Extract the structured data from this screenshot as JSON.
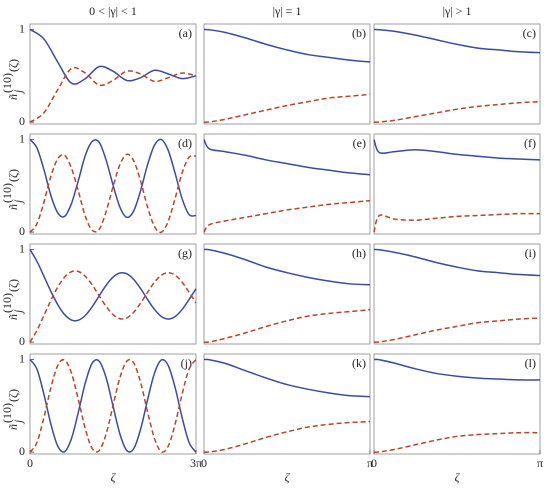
{
  "column_titles": [
    "0 < |γ| < 1",
    "|γ| = 1",
    "|γ| > 1"
  ],
  "chart_data": [
    {
      "type": "line",
      "label": "(a)",
      "ylabel": {
        "base": "ñ",
        "sub": "j",
        "sup": "(10)",
        "arg": "(ζ)"
      },
      "xlim": [
        0,
        9.425
      ],
      "ylim": [
        -0.02,
        1.06
      ],
      "yticks": [
        0,
        1
      ],
      "x": [
        0,
        0.785,
        1.571,
        2.356,
        3.142,
        3.927,
        4.712,
        5.498,
        6.283,
        7.069,
        7.854,
        8.639,
        9.425
      ],
      "series": [
        {
          "color": "#3b4ba0",
          "style": "solid",
          "values": [
            1,
            0.9,
            0.65,
            0.42,
            0.47,
            0.6,
            0.55,
            0.45,
            0.48,
            0.56,
            0.52,
            0.47,
            0.5
          ]
        },
        {
          "color": "#b5462a",
          "style": "dashed",
          "values": [
            0,
            0.1,
            0.35,
            0.58,
            0.53,
            0.4,
            0.45,
            0.55,
            0.52,
            0.44,
            0.48,
            0.53,
            0.5
          ]
        }
      ]
    },
    {
      "type": "line",
      "label": "(b)",
      "xlim": [
        0,
        3.142
      ],
      "ylim": [
        -0.02,
        1.06
      ],
      "x": [
        0,
        0.1,
        0.393,
        0.785,
        1.178,
        1.571,
        1.963,
        2.356,
        2.749,
        3.142
      ],
      "series": [
        {
          "color": "#3b4ba0",
          "style": "solid",
          "values": [
            1,
            0.998,
            0.97,
            0.91,
            0.84,
            0.78,
            0.73,
            0.7,
            0.67,
            0.65
          ]
        },
        {
          "color": "#b5462a",
          "style": "dashed",
          "values": [
            0,
            0.002,
            0.03,
            0.08,
            0.13,
            0.18,
            0.22,
            0.26,
            0.28,
            0.3
          ]
        }
      ]
    },
    {
      "type": "line",
      "label": "(c)",
      "xlim": [
        0,
        3.142
      ],
      "ylim": [
        -0.02,
        1.06
      ],
      "x": [
        0,
        0.1,
        0.393,
        0.785,
        1.178,
        1.571,
        1.963,
        2.356,
        2.749,
        3.142
      ],
      "series": [
        {
          "color": "#3b4ba0",
          "style": "solid",
          "values": [
            1,
            0.998,
            0.98,
            0.94,
            0.89,
            0.84,
            0.8,
            0.78,
            0.76,
            0.75
          ]
        },
        {
          "color": "#b5462a",
          "style": "dashed",
          "values": [
            0,
            0.002,
            0.02,
            0.06,
            0.1,
            0.14,
            0.17,
            0.19,
            0.21,
            0.22
          ]
        }
      ]
    },
    {
      "type": "line",
      "label": "(d)",
      "ylabel": {
        "base": "ñ",
        "sub": "j",
        "sup": "(10)",
        "arg": "(ζ)"
      },
      "xlim": [
        0,
        9.425
      ],
      "ylim": [
        -0.02,
        1.06
      ],
      "yticks": [
        0,
        1
      ],
      "x": [
        0,
        0.393,
        0.785,
        1.178,
        1.571,
        1.963,
        2.356,
        2.749,
        3.142,
        3.534,
        3.927,
        4.32,
        4.712,
        5.105,
        5.498,
        5.89,
        6.283,
        6.676,
        7.069,
        7.461,
        7.854,
        8.247,
        8.639,
        9.032,
        9.425
      ],
      "series": [
        {
          "color": "#3b4ba0",
          "style": "solid",
          "values": [
            1,
            0.91,
            0.68,
            0.4,
            0.21,
            0.17,
            0.31,
            0.56,
            0.83,
            0.98,
            0.97,
            0.78,
            0.51,
            0.27,
            0.16,
            0.23,
            0.45,
            0.73,
            0.94,
            1.0,
            0.88,
            0.63,
            0.36,
            0.19,
            0.18
          ]
        },
        {
          "color": "#b5462a",
          "style": "dashed",
          "values": [
            0,
            0.09,
            0.32,
            0.6,
            0.79,
            0.83,
            0.69,
            0.44,
            0.17,
            0.02,
            0.03,
            0.22,
            0.49,
            0.73,
            0.84,
            0.77,
            0.55,
            0.27,
            0.06,
            0,
            0.12,
            0.37,
            0.64,
            0.81,
            0.82
          ]
        }
      ]
    },
    {
      "type": "line",
      "label": "(e)",
      "xlim": [
        0,
        3.142
      ],
      "ylim": [
        -0.02,
        1.06
      ],
      "x": [
        0,
        0.1,
        0.393,
        0.785,
        1.178,
        1.571,
        1.963,
        2.356,
        2.749,
        3.142
      ],
      "series": [
        {
          "color": "#3b4ba0",
          "style": "solid",
          "values": [
            1,
            0.9,
            0.87,
            0.83,
            0.78,
            0.74,
            0.7,
            0.67,
            0.64,
            0.62
          ]
        },
        {
          "color": "#b5462a",
          "style": "dashed",
          "values": [
            0,
            0.08,
            0.12,
            0.16,
            0.2,
            0.24,
            0.27,
            0.3,
            0.32,
            0.34
          ]
        }
      ]
    },
    {
      "type": "line",
      "label": "(f)",
      "xlim": [
        0,
        3.142
      ],
      "ylim": [
        -0.02,
        1.06
      ],
      "x": [
        0,
        0.1,
        0.393,
        0.785,
        1.178,
        1.571,
        1.963,
        2.356,
        2.749,
        3.142
      ],
      "series": [
        {
          "color": "#3b4ba0",
          "style": "solid",
          "values": [
            1,
            0.86,
            0.87,
            0.89,
            0.87,
            0.84,
            0.82,
            0.8,
            0.79,
            0.78
          ]
        },
        {
          "color": "#b5462a",
          "style": "dashed",
          "values": [
            0,
            0.18,
            0.14,
            0.13,
            0.15,
            0.17,
            0.18,
            0.19,
            0.2,
            0.2
          ]
        }
      ]
    },
    {
      "type": "line",
      "label": "(g)",
      "ylabel": {
        "base": "ñ",
        "sub": "j",
        "sup": "(10)",
        "arg": "(ζ)"
      },
      "xlim": [
        0,
        9.425
      ],
      "ylim": [
        -0.02,
        1.06
      ],
      "yticks": [
        0,
        1
      ],
      "x": [
        0,
        0.393,
        0.785,
        1.178,
        1.571,
        1.963,
        2.356,
        2.749,
        3.142,
        3.534,
        3.927,
        4.32,
        4.712,
        5.105,
        5.498,
        5.89,
        6.283,
        6.676,
        7.069,
        7.461,
        7.854,
        8.247,
        8.639,
        9.032,
        9.425
      ],
      "series": [
        {
          "color": "#3b4ba0",
          "style": "solid",
          "values": [
            1,
            0.873,
            0.714,
            0.551,
            0.407,
            0.298,
            0.239,
            0.237,
            0.289,
            0.383,
            0.5,
            0.614,
            0.702,
            0.747,
            0.738,
            0.677,
            0.577,
            0.461,
            0.353,
            0.277,
            0.25,
            0.277,
            0.353,
            0.461,
            0.577
          ]
        },
        {
          "color": "#b5462a",
          "style": "dashed",
          "values": [
            0,
            0.127,
            0.286,
            0.449,
            0.593,
            0.702,
            0.761,
            0.763,
            0.711,
            0.617,
            0.5,
            0.386,
            0.298,
            0.253,
            0.262,
            0.323,
            0.423,
            0.539,
            0.647,
            0.723,
            0.75,
            0.723,
            0.647,
            0.539,
            0.423
          ]
        }
      ]
    },
    {
      "type": "line",
      "label": "(h)",
      "xlim": [
        0,
        3.142
      ],
      "ylim": [
        -0.02,
        1.06
      ],
      "x": [
        0,
        0.1,
        0.393,
        0.785,
        1.178,
        1.571,
        1.963,
        2.356,
        2.749,
        3.142
      ],
      "series": [
        {
          "color": "#3b4ba0",
          "style": "solid",
          "values": [
            1,
            0.998,
            0.96,
            0.89,
            0.81,
            0.75,
            0.7,
            0.66,
            0.63,
            0.62
          ]
        },
        {
          "color": "#b5462a",
          "style": "dashed",
          "values": [
            0,
            0.002,
            0.04,
            0.1,
            0.17,
            0.23,
            0.28,
            0.31,
            0.33,
            0.35
          ]
        }
      ]
    },
    {
      "type": "line",
      "label": "(i)",
      "xlim": [
        0,
        3.142
      ],
      "ylim": [
        -0.02,
        1.06
      ],
      "x": [
        0,
        0.1,
        0.393,
        0.785,
        1.178,
        1.571,
        1.963,
        2.356,
        2.749,
        3.142
      ],
      "series": [
        {
          "color": "#3b4ba0",
          "style": "solid",
          "values": [
            1,
            0.998,
            0.97,
            0.92,
            0.86,
            0.81,
            0.77,
            0.75,
            0.73,
            0.72
          ]
        },
        {
          "color": "#b5462a",
          "style": "dashed",
          "values": [
            0,
            0.002,
            0.03,
            0.08,
            0.13,
            0.17,
            0.21,
            0.23,
            0.25,
            0.26
          ]
        }
      ]
    },
    {
      "type": "line",
      "label": "(j)",
      "ylabel": {
        "base": "ñ",
        "sub": "j",
        "sup": "(10)",
        "arg": "(ζ)"
      },
      "xlabel": "ζ",
      "xlim": [
        0,
        9.425
      ],
      "ylim": [
        -0.02,
        1.06
      ],
      "yticks": [
        0,
        1
      ],
      "xticks": [
        0,
        {
          "value": 9.42477796,
          "label": "3π"
        }
      ],
      "x": [
        0,
        0.393,
        0.785,
        1.178,
        1.571,
        1.963,
        2.356,
        2.749,
        3.142,
        3.534,
        3.927,
        4.32,
        4.712,
        5.105,
        5.498,
        5.89,
        6.283,
        6.676,
        7.069,
        7.461,
        7.854,
        8.247,
        8.639,
        9.032,
        9.425
      ],
      "series": [
        {
          "color": "#3b4ba0",
          "style": "solid",
          "values": [
            1,
            0.897,
            0.63,
            0.309,
            0.067,
            0.005,
            0.147,
            0.435,
            0.75,
            0.962,
            0.983,
            0.805,
            0.5,
            0.196,
            0.017,
            0.038,
            0.25,
            0.566,
            0.854,
            0.996,
            0.933,
            0.692,
            0.371,
            0.104,
            0
          ]
        },
        {
          "color": "#b5462a",
          "style": "dashed",
          "values": [
            0,
            0.103,
            0.37,
            0.691,
            0.933,
            0.995,
            0.853,
            0.565,
            0.25,
            0.038,
            0.017,
            0.195,
            0.5,
            0.804,
            0.983,
            0.962,
            0.75,
            0.434,
            0.146,
            0.004,
            0.067,
            0.308,
            0.629,
            0.896,
            1
          ]
        }
      ]
    },
    {
      "type": "line",
      "label": "(k)",
      "xlabel": "ζ",
      "xlim": [
        0,
        3.142
      ],
      "ylim": [
        -0.02,
        1.06
      ],
      "xticks": [
        0,
        {
          "value": 3.14159265,
          "label": "π"
        }
      ],
      "x": [
        0,
        0.1,
        0.393,
        0.785,
        1.178,
        1.571,
        1.963,
        2.356,
        2.749,
        3.142
      ],
      "series": [
        {
          "color": "#3b4ba0",
          "style": "solid",
          "values": [
            1,
            0.998,
            0.96,
            0.88,
            0.8,
            0.73,
            0.68,
            0.64,
            0.61,
            0.6
          ]
        },
        {
          "color": "#b5462a",
          "style": "dashed",
          "values": [
            0,
            0.002,
            0.03,
            0.09,
            0.16,
            0.22,
            0.27,
            0.3,
            0.32,
            0.33
          ]
        }
      ]
    },
    {
      "type": "line",
      "label": "(l)",
      "xlabel": "ζ",
      "xlim": [
        0,
        3.142
      ],
      "ylim": [
        -0.02,
        1.06
      ],
      "xticks": [
        0,
        {
          "value": 3.14159265,
          "label": "π"
        }
      ],
      "x": [
        0,
        0.1,
        0.393,
        0.785,
        1.178,
        1.571,
        1.963,
        2.356,
        2.749,
        3.142
      ],
      "series": [
        {
          "color": "#3b4ba0",
          "style": "solid",
          "values": [
            1,
            0.998,
            0.96,
            0.9,
            0.85,
            0.82,
            0.8,
            0.79,
            0.78,
            0.78
          ]
        },
        {
          "color": "#b5462a",
          "style": "dashed",
          "values": [
            0,
            0.002,
            0.03,
            0.08,
            0.13,
            0.17,
            0.19,
            0.2,
            0.21,
            0.21
          ]
        }
      ]
    }
  ]
}
